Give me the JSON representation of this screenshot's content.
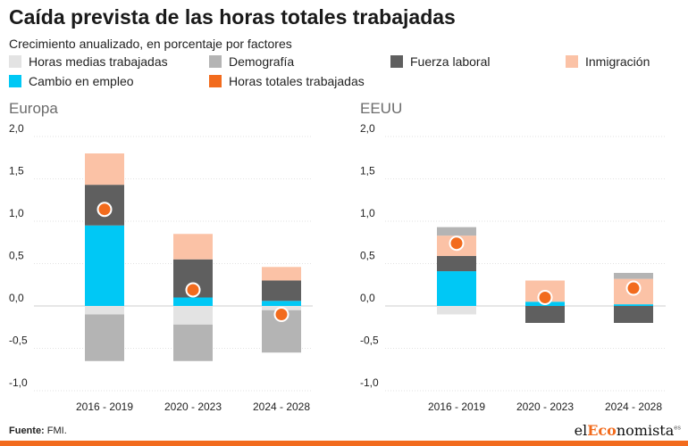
{
  "title": "Caída prevista de las horas totales trabajadas",
  "subtitle": "Crecimiento anualizado, en porcentaje por factores",
  "legend": [
    {
      "label": "Horas medias trabajadas",
      "color": "#e3e3e3"
    },
    {
      "label": "Demografía",
      "color": "#b4b4b4"
    },
    {
      "label": "Fuerza laboral",
      "color": "#5f5f5f"
    },
    {
      "label": "Inmigración",
      "color": "#fbc2a6"
    },
    {
      "label": "Cambio en empleo",
      "color": "#00c8f5"
    },
    {
      "label": "Horas totales trabajadas",
      "color": "#f26b1d"
    }
  ],
  "panels": [
    {
      "title": "Europa"
    },
    {
      "title": "EEUU"
    }
  ],
  "source": {
    "label": "Fuente:",
    "text": "FMI."
  },
  "brand": {
    "pre": "el",
    "highlight": "Eco",
    "post": "nomista",
    "suffix": "es"
  },
  "chart_data": [
    {
      "type": "bar",
      "stacked": true,
      "title": "Europa",
      "categories": [
        "2016 - 2019",
        "2020 - 2023",
        "2024 - 2028"
      ],
      "ylim": [
        -1.0,
        2.0
      ],
      "yticks": [
        -1.0,
        -0.5,
        0.0,
        0.5,
        1.0,
        1.5,
        2.0
      ],
      "ytick_labels": [
        "-1,0",
        "-0,5",
        "0,0",
        "0,5",
        "1,0",
        "1,5",
        "2,0"
      ],
      "series": [
        {
          "name": "Horas medias trabajadas",
          "values": [
            -0.1,
            -0.22,
            -0.05
          ]
        },
        {
          "name": "Demografía",
          "values": [
            -0.55,
            -0.43,
            -0.5
          ]
        },
        {
          "name": "Cambio en empleo",
          "values": [
            0.95,
            0.1,
            0.06
          ]
        },
        {
          "name": "Fuerza laboral",
          "values": [
            0.48,
            0.45,
            0.24
          ]
        },
        {
          "name": "Inmigración",
          "values": [
            0.37,
            0.3,
            0.16
          ]
        }
      ],
      "markers": {
        "name": "Horas totales trabajadas",
        "values": [
          1.14,
          0.19,
          -0.1
        ]
      }
    },
    {
      "type": "bar",
      "stacked": true,
      "title": "EEUU",
      "categories": [
        "2016 - 2019",
        "2020 - 2023",
        "2024 - 2028"
      ],
      "ylim": [
        -1.0,
        2.0
      ],
      "yticks": [
        -1.0,
        -0.5,
        0.0,
        0.5,
        1.0,
        1.5,
        2.0
      ],
      "ytick_labels": [
        "-1,0",
        "-0,5",
        "0,0",
        "0,5",
        "1,0",
        "1,5",
        "2,0"
      ],
      "series": [
        {
          "name": "Horas medias trabajadas",
          "values": [
            -0.1,
            0.0,
            0.0
          ]
        },
        {
          "name": "Demografía",
          "values": [
            0.0,
            0.0,
            0.0
          ]
        },
        {
          "name": "Cambio en empleo",
          "values": [
            0.41,
            0.05,
            0.02
          ]
        },
        {
          "name": "Fuerza laboral",
          "values": [
            0.18,
            -0.2,
            -0.2
          ]
        },
        {
          "name": "Inmigración",
          "values": [
            0.24,
            0.25,
            0.3
          ]
        },
        {
          "name": "Demografía (positivo)",
          "values": [
            0.1,
            0.0,
            0.07
          ]
        }
      ],
      "markers": {
        "name": "Horas totales trabajadas",
        "values": [
          0.74,
          0.1,
          0.21
        ]
      }
    }
  ]
}
